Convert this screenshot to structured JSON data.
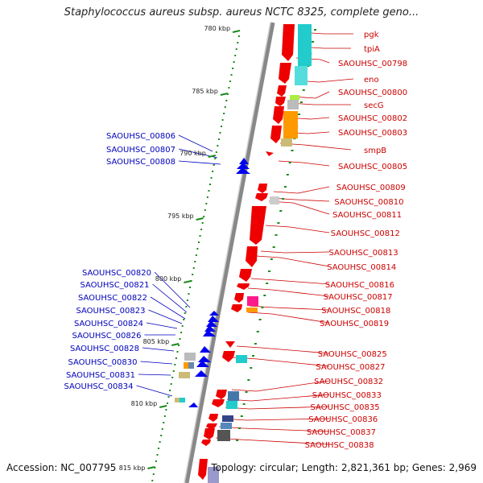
{
  "title": "Staphylococcus aureus subsp. aureus NCTC 8325, complete geno...",
  "footer": {
    "accession": "Accession: NC_007795",
    "summary": "Topology: circular; Length: 2,821,361 bp; Genes: 2,969"
  },
  "ruler": {
    "ticks": [
      "780 kbp",
      "785 kbp",
      "790 kbp",
      "795 kbp",
      "800 kbp",
      "805 kbp",
      "810 kbp",
      "815 kbp"
    ]
  },
  "genes_right": [
    "pgk",
    "tpiA",
    "SAOUHSC_00798",
    "eno",
    "SAOUHSC_00800",
    "secG",
    "SAOUHSC_00802",
    "SAOUHSC_00803",
    "smpB",
    "SAOUHSC_00805",
    "SAOUHSC_00809",
    "SAOUHSC_00810",
    "SAOUHSC_00811",
    "SAOUHSC_00812",
    "SAOUHSC_00813",
    "SAOUHSC_00814",
    "SAOUHSC_00816",
    "SAOUHSC_00817",
    "SAOUHSC_00818",
    "SAOUHSC_00819",
    "SAOUHSC_00825",
    "SAOUHSC_00827",
    "SAOUHSC_00832",
    "SAOUHSC_00833",
    "SAOUHSC_00835",
    "SAOUHSC_00836",
    "SAOUHSC_00837",
    "SAOUHSC_00838"
  ],
  "genes_left": [
    "SAOUHSC_00806",
    "SAOUHSC_00807",
    "SAOUHSC_00808",
    "SAOUHSC_00820",
    "SAOUHSC_00821",
    "SAOUHSC_00822",
    "SAOUHSC_00823",
    "SAOUHSC_00824",
    "SAOUHSC_00826",
    "SAOUHSC_00828",
    "SAOUHSC_00830",
    "SAOUHSC_00831",
    "SAOUHSC_00834"
  ],
  "colors": {
    "forward_strand": "#ee0000",
    "reverse_strand": "#0000ee",
    "backbone": "#888888",
    "tick": "#1a8a1a",
    "cyan_feature": "#22cccc",
    "orange_feature": "#ff9900",
    "magenta_feature": "#ff1a8c"
  }
}
